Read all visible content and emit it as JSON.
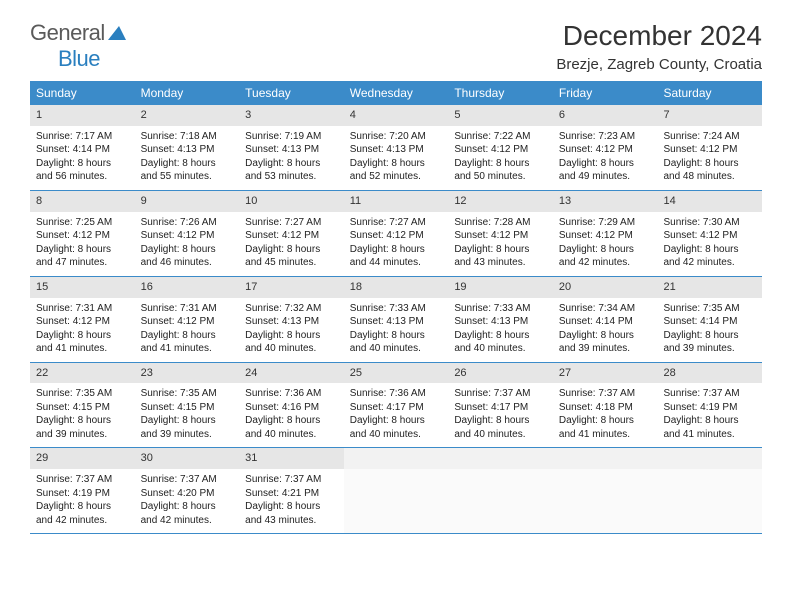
{
  "brand": {
    "name_part1": "General",
    "name_part2": "Blue",
    "icon_color": "#2a7fbf"
  },
  "title": "December 2024",
  "location": "Brezje, Zagreb County, Croatia",
  "colors": {
    "header_bg": "#3b8bc9",
    "header_text": "#ffffff",
    "day_num_bg": "#e6e6e6",
    "border": "#3b8bc9",
    "text": "#222222"
  },
  "day_names": [
    "Sunday",
    "Monday",
    "Tuesday",
    "Wednesday",
    "Thursday",
    "Friday",
    "Saturday"
  ],
  "weeks": [
    [
      {
        "n": "1",
        "sunrise": "Sunrise: 7:17 AM",
        "sunset": "Sunset: 4:14 PM",
        "daylight": "Daylight: 8 hours and 56 minutes."
      },
      {
        "n": "2",
        "sunrise": "Sunrise: 7:18 AM",
        "sunset": "Sunset: 4:13 PM",
        "daylight": "Daylight: 8 hours and 55 minutes."
      },
      {
        "n": "3",
        "sunrise": "Sunrise: 7:19 AM",
        "sunset": "Sunset: 4:13 PM",
        "daylight": "Daylight: 8 hours and 53 minutes."
      },
      {
        "n": "4",
        "sunrise": "Sunrise: 7:20 AM",
        "sunset": "Sunset: 4:13 PM",
        "daylight": "Daylight: 8 hours and 52 minutes."
      },
      {
        "n": "5",
        "sunrise": "Sunrise: 7:22 AM",
        "sunset": "Sunset: 4:12 PM",
        "daylight": "Daylight: 8 hours and 50 minutes."
      },
      {
        "n": "6",
        "sunrise": "Sunrise: 7:23 AM",
        "sunset": "Sunset: 4:12 PM",
        "daylight": "Daylight: 8 hours and 49 minutes."
      },
      {
        "n": "7",
        "sunrise": "Sunrise: 7:24 AM",
        "sunset": "Sunset: 4:12 PM",
        "daylight": "Daylight: 8 hours and 48 minutes."
      }
    ],
    [
      {
        "n": "8",
        "sunrise": "Sunrise: 7:25 AM",
        "sunset": "Sunset: 4:12 PM",
        "daylight": "Daylight: 8 hours and 47 minutes."
      },
      {
        "n": "9",
        "sunrise": "Sunrise: 7:26 AM",
        "sunset": "Sunset: 4:12 PM",
        "daylight": "Daylight: 8 hours and 46 minutes."
      },
      {
        "n": "10",
        "sunrise": "Sunrise: 7:27 AM",
        "sunset": "Sunset: 4:12 PM",
        "daylight": "Daylight: 8 hours and 45 minutes."
      },
      {
        "n": "11",
        "sunrise": "Sunrise: 7:27 AM",
        "sunset": "Sunset: 4:12 PM",
        "daylight": "Daylight: 8 hours and 44 minutes."
      },
      {
        "n": "12",
        "sunrise": "Sunrise: 7:28 AM",
        "sunset": "Sunset: 4:12 PM",
        "daylight": "Daylight: 8 hours and 43 minutes."
      },
      {
        "n": "13",
        "sunrise": "Sunrise: 7:29 AM",
        "sunset": "Sunset: 4:12 PM",
        "daylight": "Daylight: 8 hours and 42 minutes."
      },
      {
        "n": "14",
        "sunrise": "Sunrise: 7:30 AM",
        "sunset": "Sunset: 4:12 PM",
        "daylight": "Daylight: 8 hours and 42 minutes."
      }
    ],
    [
      {
        "n": "15",
        "sunrise": "Sunrise: 7:31 AM",
        "sunset": "Sunset: 4:12 PM",
        "daylight": "Daylight: 8 hours and 41 minutes."
      },
      {
        "n": "16",
        "sunrise": "Sunrise: 7:31 AM",
        "sunset": "Sunset: 4:12 PM",
        "daylight": "Daylight: 8 hours and 41 minutes."
      },
      {
        "n": "17",
        "sunrise": "Sunrise: 7:32 AM",
        "sunset": "Sunset: 4:13 PM",
        "daylight": "Daylight: 8 hours and 40 minutes."
      },
      {
        "n": "18",
        "sunrise": "Sunrise: 7:33 AM",
        "sunset": "Sunset: 4:13 PM",
        "daylight": "Daylight: 8 hours and 40 minutes."
      },
      {
        "n": "19",
        "sunrise": "Sunrise: 7:33 AM",
        "sunset": "Sunset: 4:13 PM",
        "daylight": "Daylight: 8 hours and 40 minutes."
      },
      {
        "n": "20",
        "sunrise": "Sunrise: 7:34 AM",
        "sunset": "Sunset: 4:14 PM",
        "daylight": "Daylight: 8 hours and 39 minutes."
      },
      {
        "n": "21",
        "sunrise": "Sunrise: 7:35 AM",
        "sunset": "Sunset: 4:14 PM",
        "daylight": "Daylight: 8 hours and 39 minutes."
      }
    ],
    [
      {
        "n": "22",
        "sunrise": "Sunrise: 7:35 AM",
        "sunset": "Sunset: 4:15 PM",
        "daylight": "Daylight: 8 hours and 39 minutes."
      },
      {
        "n": "23",
        "sunrise": "Sunrise: 7:35 AM",
        "sunset": "Sunset: 4:15 PM",
        "daylight": "Daylight: 8 hours and 39 minutes."
      },
      {
        "n": "24",
        "sunrise": "Sunrise: 7:36 AM",
        "sunset": "Sunset: 4:16 PM",
        "daylight": "Daylight: 8 hours and 40 minutes."
      },
      {
        "n": "25",
        "sunrise": "Sunrise: 7:36 AM",
        "sunset": "Sunset: 4:17 PM",
        "daylight": "Daylight: 8 hours and 40 minutes."
      },
      {
        "n": "26",
        "sunrise": "Sunrise: 7:37 AM",
        "sunset": "Sunset: 4:17 PM",
        "daylight": "Daylight: 8 hours and 40 minutes."
      },
      {
        "n": "27",
        "sunrise": "Sunrise: 7:37 AM",
        "sunset": "Sunset: 4:18 PM",
        "daylight": "Daylight: 8 hours and 41 minutes."
      },
      {
        "n": "28",
        "sunrise": "Sunrise: 7:37 AM",
        "sunset": "Sunset: 4:19 PM",
        "daylight": "Daylight: 8 hours and 41 minutes."
      }
    ],
    [
      {
        "n": "29",
        "sunrise": "Sunrise: 7:37 AM",
        "sunset": "Sunset: 4:19 PM",
        "daylight": "Daylight: 8 hours and 42 minutes."
      },
      {
        "n": "30",
        "sunrise": "Sunrise: 7:37 AM",
        "sunset": "Sunset: 4:20 PM",
        "daylight": "Daylight: 8 hours and 42 minutes."
      },
      {
        "n": "31",
        "sunrise": "Sunrise: 7:37 AM",
        "sunset": "Sunset: 4:21 PM",
        "daylight": "Daylight: 8 hours and 43 minutes."
      },
      {
        "empty": true
      },
      {
        "empty": true
      },
      {
        "empty": true
      },
      {
        "empty": true
      }
    ]
  ]
}
